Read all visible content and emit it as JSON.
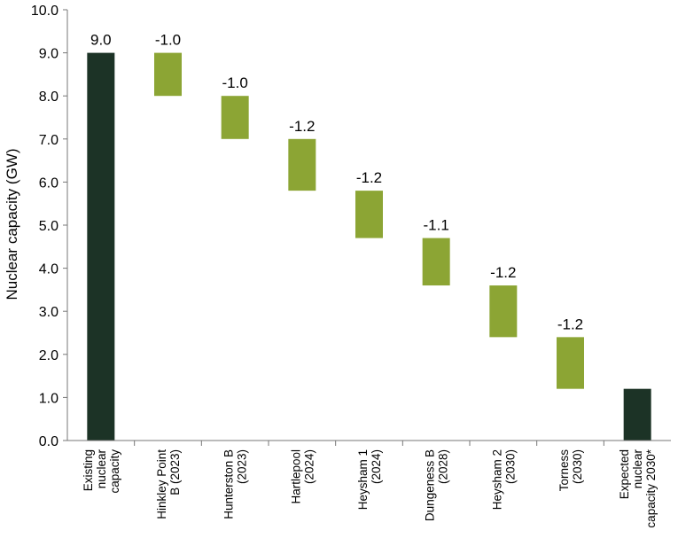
{
  "chart_data": {
    "type": "bar",
    "subtype": "waterfall",
    "title": "",
    "ylabel": "Nuclear capacity (GW)",
    "xlabel": "",
    "ylim": [
      0,
      10
    ],
    "yticks": [
      "0.0",
      "1.0",
      "2.0",
      "3.0",
      "4.0",
      "5.0",
      "6.0",
      "7.0",
      "8.0",
      "9.0",
      "10.0"
    ],
    "grid": false,
    "legend": "none",
    "colors": {
      "total": "#1c3326",
      "decrease": "#8ca534"
    },
    "bars": [
      {
        "label_lines": [
          "Existing",
          "nuclear",
          "capacity"
        ],
        "kind": "total",
        "start": 0,
        "end": 9.0,
        "data_label": "9.0"
      },
      {
        "label_lines": [
          "Hinkley Point",
          "B (2023)"
        ],
        "kind": "decrease",
        "start": 9.0,
        "end": 8.0,
        "data_label": "-1.0"
      },
      {
        "label_lines": [
          "Hunterston B",
          "(2023)"
        ],
        "kind": "decrease",
        "start": 8.0,
        "end": 7.0,
        "data_label": "-1.0"
      },
      {
        "label_lines": [
          "Hartlepool",
          "(2024)"
        ],
        "kind": "decrease",
        "start": 7.0,
        "end": 5.8,
        "data_label": "-1.2"
      },
      {
        "label_lines": [
          "Heysham 1",
          "(2024)"
        ],
        "kind": "decrease",
        "start": 5.8,
        "end": 4.7,
        "data_label": "-1.2"
      },
      {
        "label_lines": [
          "Dungeness B",
          "(2028)"
        ],
        "kind": "decrease",
        "start": 4.7,
        "end": 3.6,
        "data_label": "-1.1"
      },
      {
        "label_lines": [
          "Heysham 2",
          "(2030)"
        ],
        "kind": "decrease",
        "start": 3.6,
        "end": 2.4,
        "data_label": "-1.2"
      },
      {
        "label_lines": [
          "Torness",
          "(2030)"
        ],
        "kind": "decrease",
        "start": 2.4,
        "end": 1.2,
        "data_label": "-1.2"
      },
      {
        "label_lines": [
          "Expected",
          "nuclear",
          "capacity 2030*"
        ],
        "kind": "total",
        "start": 0,
        "end": 1.2,
        "data_label": ""
      }
    ]
  }
}
